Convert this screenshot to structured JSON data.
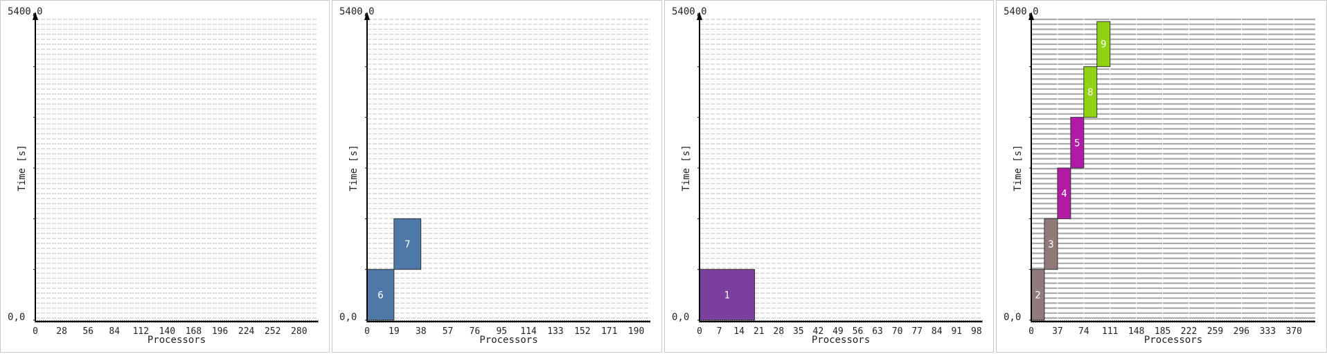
{
  "chart_data": [
    {
      "type": "gantt",
      "ymax_label": "5400,0",
      "ymin_label": "0,0",
      "ylabel": "Time [s]",
      "xlabel": "Processors",
      "ylim": [
        0,
        5400
      ],
      "xlim": [
        0,
        300
      ],
      "xticks": [
        0,
        28,
        56,
        84,
        112,
        140,
        168,
        196,
        224,
        252,
        280
      ],
      "busy": false,
      "jobs": []
    },
    {
      "type": "gantt",
      "ymax_label": "5400,0",
      "ymin_label": "0,0",
      "ylabel": "Time [s]",
      "xlabel": "Processors",
      "ylim": [
        0,
        5400
      ],
      "xlim": [
        0,
        200
      ],
      "xticks": [
        0,
        19,
        38,
        57,
        76,
        95,
        114,
        133,
        152,
        171,
        190
      ],
      "busy": false,
      "jobs": [
        {
          "label": "6",
          "x0": 0,
          "x1": 19,
          "t0": 0,
          "t1": 900,
          "color": "#4e78a8"
        },
        {
          "label": "7",
          "x0": 19,
          "x1": 38,
          "t0": 900,
          "t1": 1800,
          "color": "#4e78a8"
        }
      ]
    },
    {
      "type": "gantt",
      "ymax_label": "5400,0",
      "ymin_label": "0,0",
      "ylabel": "Time [s]",
      "xlabel": "Processors",
      "ylim": [
        0,
        5400
      ],
      "xlim": [
        0,
        100
      ],
      "xticks": [
        0,
        7,
        14,
        21,
        28,
        35,
        42,
        49,
        56,
        63,
        70,
        77,
        84,
        91,
        98
      ],
      "busy": false,
      "jobs": [
        {
          "label": "1",
          "x0": 0,
          "x1": 19.5,
          "t0": 0,
          "t1": 900,
          "color": "#7b3f9e"
        }
      ]
    },
    {
      "type": "gantt",
      "ymax_label": "5400,0",
      "ymin_label": "0,0",
      "ylabel": "Time [s]",
      "xlabel": "Processors",
      "ylim": [
        0,
        5400
      ],
      "xlim": [
        0,
        400
      ],
      "xticks": [
        0,
        37,
        74,
        111,
        148,
        185,
        222,
        259,
        296,
        333,
        370
      ],
      "busy": true,
      "jobs": [
        {
          "label": "2",
          "x0": 0,
          "x1": 18.5,
          "t0": 0,
          "t1": 900,
          "color": "#8f7b7a"
        },
        {
          "label": "3",
          "x0": 18.5,
          "x1": 37,
          "t0": 900,
          "t1": 1800,
          "color": "#8f7b7a"
        },
        {
          "label": "4",
          "x0": 37,
          "x1": 55.5,
          "t0": 1800,
          "t1": 2700,
          "color": "#b21aa6"
        },
        {
          "label": "5",
          "x0": 55.5,
          "x1": 74,
          "t0": 2700,
          "t1": 3600,
          "color": "#b21aa6"
        },
        {
          "label": "8",
          "x0": 74,
          "x1": 92.5,
          "t0": 3600,
          "t1": 4500,
          "color": "#8fd313"
        },
        {
          "label": "9",
          "x0": 92.5,
          "x1": 111,
          "t0": 4500,
          "t1": 5300,
          "color": "#8fd313"
        }
      ]
    }
  ]
}
